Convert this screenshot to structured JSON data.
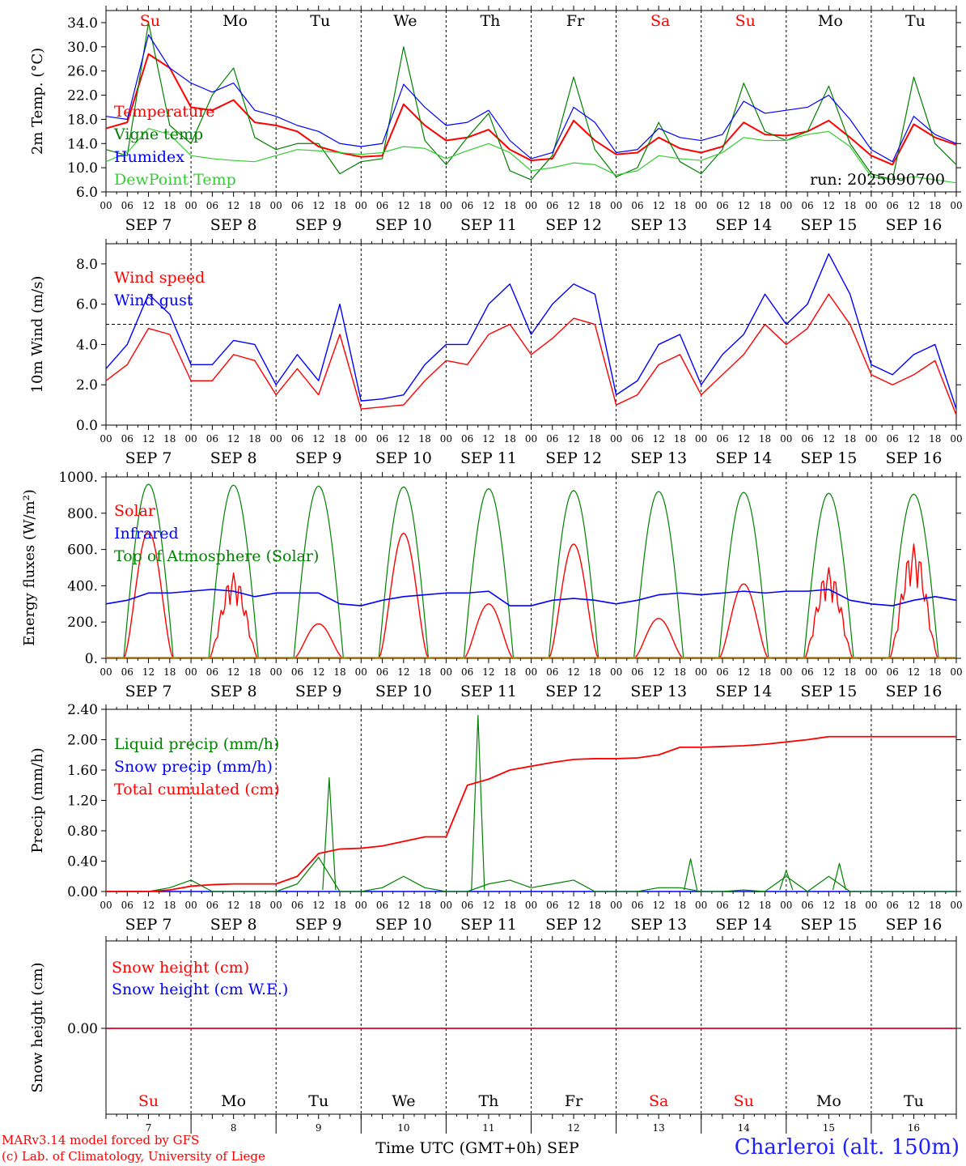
{
  "days": [
    "Su",
    "Mo",
    "Tu",
    "We",
    "Th",
    "Fr",
    "Sa",
    "Su",
    "Mo",
    "Tu"
  ],
  "weekend_days": [
    0,
    6,
    7
  ],
  "dates": [
    "SEP  7",
    "SEP  8",
    "SEP  9",
    "SEP 10",
    "SEP 11",
    "SEP 12",
    "SEP 13",
    "SEP 14",
    "SEP 15",
    "SEP 16"
  ],
  "date_numbers": [
    "7",
    "8",
    "9",
    "10",
    "11",
    "12",
    "13",
    "14",
    "15",
    "16"
  ],
  "hour_labels": [
    "00",
    "06",
    "12",
    "18"
  ],
  "end_hour_label": "00",
  "bottom_xlabel": "Time UTC (GMT+0h) SEP",
  "footer": {
    "model": "MARv3.14 model forced by GFS",
    "credit": "(c) Lab. of Climatology, University of Liege",
    "location": "Charleroi (alt. 150m)"
  },
  "colors": {
    "red": "#ff0000",
    "green": "#008000",
    "blue": "#0000ff",
    "lightgreen": "#33cc33"
  },
  "chart_data": [
    {
      "type": "line",
      "ylabel": "2m Temp. (°C)",
      "ylim": [
        6.0,
        36.0
      ],
      "yticks": [
        "6.0",
        "10.0",
        "14.0",
        "18.0",
        "22.0",
        "26.0",
        "30.0",
        "34.0"
      ],
      "annotation": "run: 2025090700",
      "x": [
        "Sep 7 00",
        "Sep 7 06",
        "Sep 7 12",
        "Sep 7 18",
        "Sep 8 00",
        "Sep 8 06",
        "Sep 8 12",
        "Sep 8 18",
        "Sep 9 00",
        "Sep 9 06",
        "Sep 9 12",
        "Sep 9 18",
        "Sep 10 00",
        "Sep 10 06",
        "Sep 10 12",
        "Sep 10 18",
        "Sep 11 00",
        "Sep 11 06",
        "Sep 11 12",
        "Sep 11 18",
        "Sep 12 00",
        "Sep 12 06",
        "Sep 12 12",
        "Sep 12 18",
        "Sep 13 00",
        "Sep 13 06",
        "Sep 13 12",
        "Sep 13 18",
        "Sep 14 00",
        "Sep 14 06",
        "Sep 14 12",
        "Sep 14 18",
        "Sep 15 00",
        "Sep 15 06",
        "Sep 15 12",
        "Sep 15 18",
        "Sep 16 00",
        "Sep 16 06",
        "Sep 16 12",
        "Sep 16 18",
        "Sep 17 00"
      ],
      "series": [
        {
          "name": "Temperature",
          "color": "#ff0000",
          "values": [
            16.5,
            17.5,
            28.8,
            26.5,
            20.0,
            19.5,
            21.2,
            17.5,
            17.0,
            16.0,
            13.5,
            12.5,
            11.8,
            12.0,
            20.5,
            17.0,
            14.5,
            15.0,
            16.3,
            13.0,
            11.2,
            11.5,
            17.8,
            14.5,
            12.2,
            12.5,
            15.0,
            13.2,
            12.5,
            13.5,
            17.5,
            15.5,
            15.3,
            16.0,
            17.8,
            15.0,
            12.0,
            10.5,
            17.2,
            15.0,
            13.8
          ]
        },
        {
          "name": "Vigne temp",
          "color": "#008000",
          "values": [
            13.0,
            12.0,
            34.0,
            17.0,
            14.0,
            22.0,
            26.5,
            15.0,
            13.0,
            14.0,
            14.0,
            9.0,
            11.0,
            11.5,
            30.0,
            14.5,
            10.5,
            15.0,
            19.0,
            9.5,
            8.0,
            12.0,
            25.0,
            13.0,
            8.5,
            10.0,
            17.5,
            11.0,
            9.0,
            13.0,
            24.0,
            16.0,
            14.5,
            16.0,
            23.5,
            14.0,
            9.0,
            8.0,
            25.0,
            14.0,
            10.5
          ]
        },
        {
          "name": "Humidex",
          "color": "#0000ff",
          "values": [
            18.5,
            18.0,
            32.0,
            26.5,
            24.0,
            22.5,
            24.0,
            19.5,
            18.5,
            17.0,
            16.0,
            14.0,
            13.5,
            14.0,
            23.8,
            20.0,
            17.0,
            17.5,
            19.5,
            14.5,
            11.5,
            12.5,
            20.0,
            17.5,
            12.5,
            13.0,
            16.5,
            15.0,
            14.5,
            15.5,
            21.0,
            19.0,
            19.5,
            20.0,
            22.0,
            18.0,
            13.0,
            11.0,
            18.5,
            15.5,
            14.0
          ]
        },
        {
          "name": "DewPoint Temp",
          "color": "#33cc33",
          "values": [
            11.0,
            12.5,
            16.5,
            15.5,
            12.0,
            11.5,
            11.2,
            11.0,
            12.0,
            13.0,
            12.8,
            12.5,
            12.2,
            12.5,
            13.5,
            13.2,
            11.5,
            12.8,
            14.0,
            12.5,
            9.5,
            10.0,
            10.8,
            10.5,
            8.8,
            9.5,
            12.0,
            11.5,
            11.2,
            12.5,
            15.0,
            14.5,
            14.5,
            15.5,
            16.0,
            13.5,
            8.5,
            8.0,
            8.5,
            8.0,
            7.5
          ]
        }
      ]
    },
    {
      "type": "line",
      "ylabel": "10m Wind (m/s)",
      "ylim": [
        0.0,
        9.0
      ],
      "yticks": [
        "0.0",
        "2.0",
        "4.0",
        "6.0",
        "8.0"
      ],
      "reference_line": 5.0,
      "x": "same as panel 1",
      "series": [
        {
          "name": "Wind speed",
          "color": "#ff0000",
          "values": [
            2.2,
            3.0,
            4.8,
            4.5,
            2.2,
            2.2,
            3.5,
            3.2,
            1.5,
            2.8,
            1.5,
            4.5,
            0.8,
            0.9,
            1.0,
            2.2,
            3.2,
            3.0,
            4.5,
            5.0,
            3.5,
            4.3,
            5.3,
            5.0,
            1.0,
            1.5,
            3.0,
            3.5,
            1.5,
            2.5,
            3.5,
            5.0,
            4.0,
            4.8,
            6.5,
            5.0,
            2.5,
            2.0,
            2.5,
            3.2,
            0.5
          ]
        },
        {
          "name": "Wind gust",
          "color": "#0000ff",
          "values": [
            2.8,
            4.0,
            6.5,
            5.5,
            3.0,
            3.0,
            4.2,
            4.0,
            2.0,
            3.5,
            2.2,
            6.0,
            1.2,
            1.3,
            1.5,
            3.0,
            4.0,
            4.0,
            6.0,
            7.0,
            4.5,
            6.0,
            7.0,
            6.5,
            1.5,
            2.2,
            4.0,
            4.5,
            2.0,
            3.5,
            4.5,
            6.5,
            5.0,
            6.0,
            8.5,
            6.5,
            3.0,
            2.5,
            3.5,
            4.0,
            0.8
          ]
        }
      ]
    },
    {
      "type": "line",
      "ylabel": "Energy fluxes (W/m²)",
      "ylim": [
        0,
        1000
      ],
      "yticks": [
        "0.",
        "200.",
        "400.",
        "600.",
        "800.",
        "1000."
      ],
      "x": "same as panel 1",
      "series": [
        {
          "name": "Solar",
          "color": "#ff0000",
          "daily_peaks": [
            700,
            470,
            190,
            690,
            300,
            630,
            220,
            410,
            500,
            630
          ]
        },
        {
          "name": "Infrared",
          "color": "#0000ff",
          "values": [
            300,
            320,
            360,
            360,
            370,
            380,
            370,
            340,
            360,
            360,
            360,
            300,
            290,
            320,
            340,
            350,
            360,
            360,
            370,
            290,
            290,
            320,
            330,
            320,
            300,
            320,
            350,
            360,
            350,
            360,
            370,
            360,
            370,
            370,
            380,
            320,
            300,
            290,
            320,
            340,
            320
          ]
        },
        {
          "name": "Top of Atmosphere (Solar)",
          "color": "#008000",
          "daily_peaks": [
            960,
            955,
            950,
            945,
            935,
            925,
            920,
            915,
            910,
            905
          ]
        }
      ]
    },
    {
      "type": "line",
      "ylabel": "Precip (mm/h)",
      "ylim": [
        0.0,
        2.4
      ],
      "yticks": [
        "0.00",
        "0.40",
        "0.80",
        "1.20",
        "1.60",
        "2.00",
        "2.40"
      ],
      "x": "same as panel 1",
      "series": [
        {
          "name": "Liquid precip (mm/h)",
          "color": "#008000",
          "values": [
            0.0,
            0.0,
            0.0,
            0.05,
            0.15,
            0.0,
            0.0,
            0.0,
            0.0,
            0.1,
            0.45,
            0.0,
            0.0,
            0.05,
            0.2,
            0.05,
            0.0,
            0.0,
            0.1,
            0.15,
            0.05,
            0.1,
            0.15,
            0.0,
            0.0,
            0.0,
            0.05,
            0.05,
            0.0,
            0.0,
            0.02,
            0.0,
            0.2,
            0.0,
            0.2,
            0.0,
            0.0,
            0.0,
            0.0,
            0.0,
            0.0
          ]
        },
        {
          "name": "Snow precip (mm/h)",
          "color": "#0000ff",
          "values": [
            0,
            0,
            0,
            0,
            0,
            0,
            0,
            0,
            0,
            0,
            0,
            0,
            0,
            0,
            0,
            0,
            0,
            0,
            0,
            0,
            0,
            0,
            0,
            0,
            0,
            0,
            0,
            0,
            0,
            0,
            0,
            0,
            0,
            0,
            0,
            0,
            0,
            0,
            0,
            0,
            0
          ]
        },
        {
          "name": "Total cumulated (cm)",
          "color": "#ff0000",
          "values": [
            0.0,
            0.0,
            0.0,
            0.02,
            0.07,
            0.09,
            0.1,
            0.1,
            0.1,
            0.2,
            0.5,
            0.56,
            0.57,
            0.6,
            0.66,
            0.72,
            0.72,
            1.4,
            1.48,
            1.6,
            1.65,
            1.7,
            1.74,
            1.75,
            1.75,
            1.76,
            1.8,
            1.9,
            1.9,
            1.91,
            1.92,
            1.94,
            1.97,
            2.0,
            2.04,
            2.04,
            2.04,
            2.04,
            2.04,
            2.04,
            2.04
          ]
        }
      ],
      "spikes": [
        {
          "x": "Sep 9 15",
          "value": 1.5
        },
        {
          "x": "Sep 11 09",
          "value": 2.32
        },
        {
          "x": "Sep 13 21",
          "value": 0.43
        },
        {
          "x": "Sep 15 15",
          "value": 0.37
        },
        {
          "x": "Sep 15 00",
          "value": 0.28
        }
      ]
    },
    {
      "type": "line",
      "ylabel": "Snow height (cm)",
      "yticks": [
        "0.00"
      ],
      "x": "same as panel 1",
      "series": [
        {
          "name": "Snow height (cm)",
          "color": "#ff0000",
          "values": [
            0,
            0
          ]
        },
        {
          "name": "Snow height (cm W.E.)",
          "color": "#0000ff",
          "values": [
            0,
            0
          ]
        }
      ]
    }
  ]
}
